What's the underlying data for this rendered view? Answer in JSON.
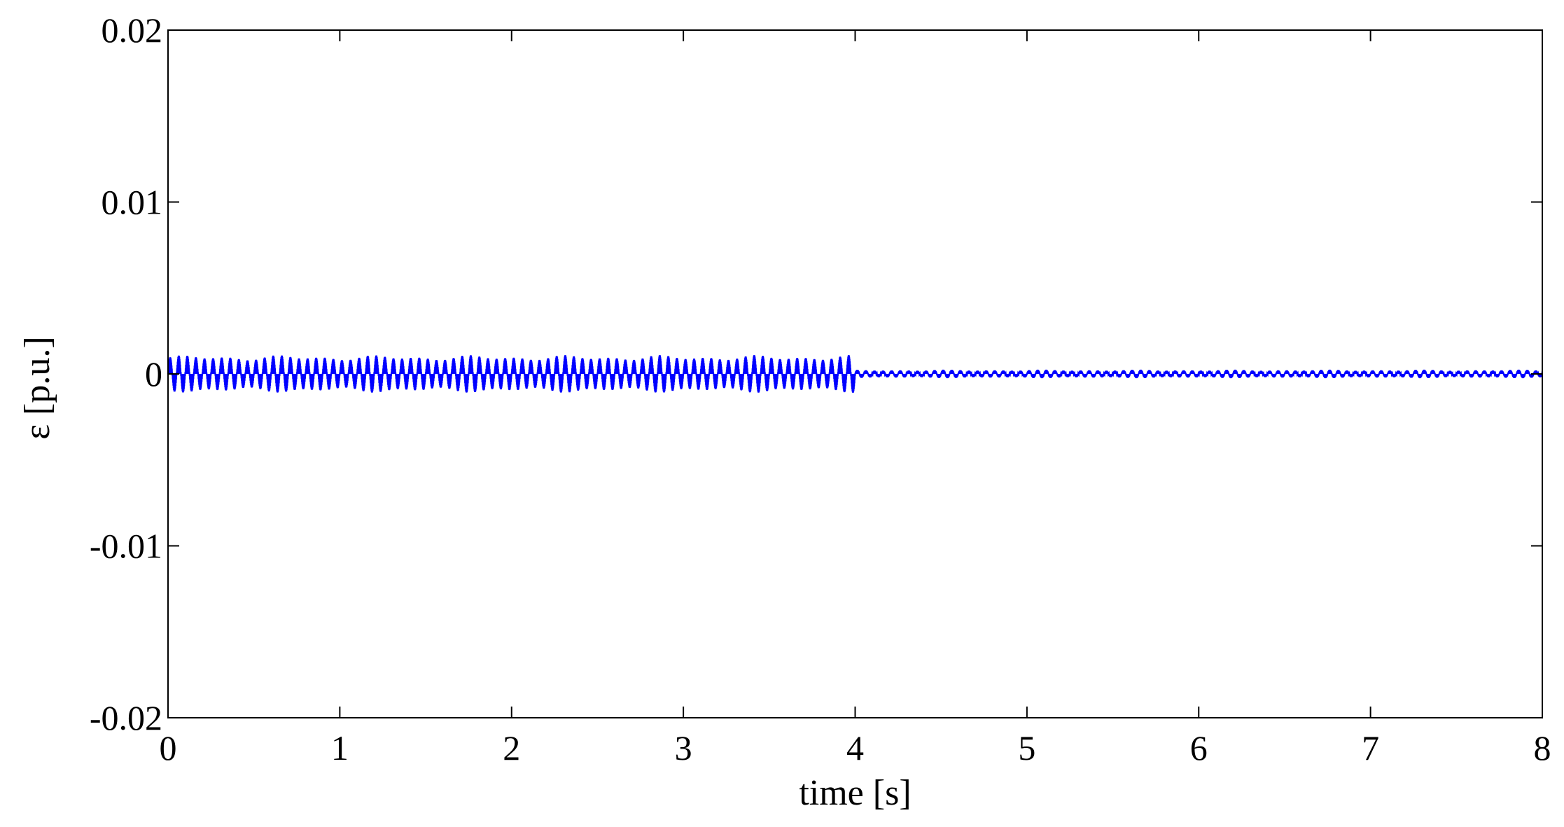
{
  "chart_data": {
    "type": "line",
    "title": "",
    "xlabel": "time [s]",
    "ylabel": "ε [p.u.]",
    "xlim": [
      0,
      8
    ],
    "ylim": [
      -0.02,
      0.02
    ],
    "x_ticks": [
      0,
      1,
      2,
      3,
      4,
      5,
      6,
      7,
      8
    ],
    "x_tick_labels": [
      "0",
      "1",
      "2",
      "3",
      "4",
      "5",
      "6",
      "7",
      "8"
    ],
    "y_ticks": [
      0.02,
      0.01,
      0,
      -0.01,
      -0.02
    ],
    "y_tick_labels": [
      "0.02",
      "0.01",
      "0",
      "-0.01",
      "-0.02"
    ],
    "grid": false,
    "line_color": "#0000ff",
    "series": [
      {
        "segments": [
          {
            "t_start": 0,
            "t_end": 4,
            "oscillation_amplitude": 0.0011,
            "oscillation_period_s": 0.05
          },
          {
            "t_start": 4,
            "t_end": 8,
            "oscillation_amplitude": 0.00025,
            "oscillation_period_s": 0.05
          }
        ]
      }
    ]
  }
}
